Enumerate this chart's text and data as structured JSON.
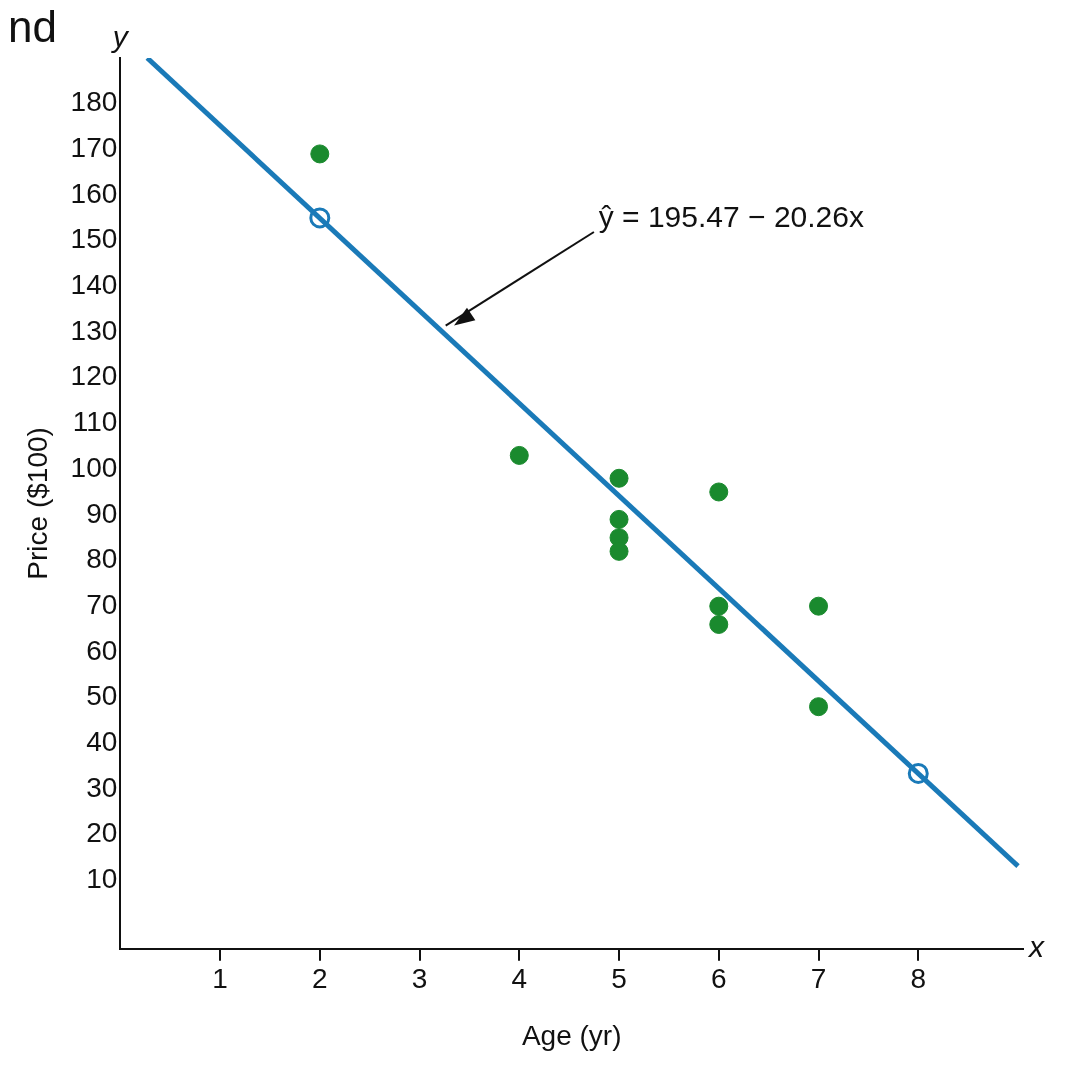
{
  "chart_data": {
    "type": "scatter",
    "xlabel": "Age (yr)",
    "ylabel": "Price ($100)",
    "annotations": [
      "nd",
      "y",
      "x",
      "ŷ = 195.47 − 20.26x"
    ],
    "xlim": [
      0,
      9.05
    ],
    "ylim": [
      -5,
      190
    ],
    "xticks": [
      1,
      2,
      3,
      4,
      5,
      6,
      7,
      8
    ],
    "yticks": [
      10,
      20,
      30,
      40,
      50,
      60,
      70,
      80,
      90,
      100,
      110,
      120,
      130,
      140,
      150,
      160,
      170,
      180
    ],
    "grid": false,
    "legend": false,
    "marker": "circle",
    "series": [
      {
        "type": "line",
        "color": "#1a7ab8",
        "x": [
          0.27,
          9
        ],
        "values": [
          190,
          13.1
        ],
        "marker": "none"
      },
      {
        "color": "#1a7ab8",
        "x": [
          2,
          8
        ],
        "values": [
          155,
          33.4
        ]
      },
      {
        "color": "#1a8a2e",
        "x": [
          2,
          4,
          5,
          5,
          5,
          5,
          6,
          6,
          6,
          7,
          7
        ],
        "values": [
          169,
          103,
          98,
          89,
          85,
          82,
          95,
          70,
          66,
          70,
          48
        ]
      }
    ]
  }
}
